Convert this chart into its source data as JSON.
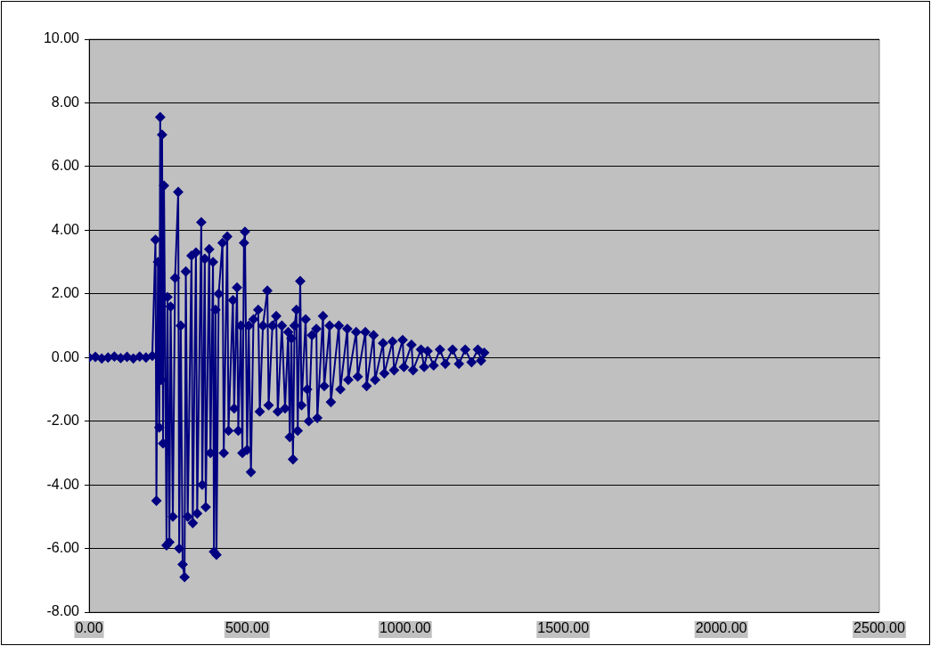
{
  "chart_data": {
    "type": "line",
    "marker": "diamond",
    "line_style": "solid",
    "grid": "y",
    "legend": false,
    "xlim": [
      0,
      2500
    ],
    "xticks": [
      {
        "value": 0,
        "label": "0.00"
      },
      {
        "value": 500,
        "label": "500.00"
      },
      {
        "value": 1000,
        "label": "1000.00"
      },
      {
        "value": 1500,
        "label": "1500.00"
      },
      {
        "value": 2000,
        "label": "2000.00"
      },
      {
        "value": 2500,
        "label": "2500.00"
      }
    ],
    "ylim": [
      -8,
      10
    ],
    "yticks": [
      {
        "value": -8,
        "label": "-8.00"
      },
      {
        "value": -6,
        "label": "-6.00"
      },
      {
        "value": -4,
        "label": "-4.00"
      },
      {
        "value": -2,
        "label": "-2.00"
      },
      {
        "value": 0,
        "label": "0.00"
      },
      {
        "value": 2,
        "label": "2.00"
      },
      {
        "value": 4,
        "label": "4.00"
      },
      {
        "value": 6,
        "label": "6.00"
      },
      {
        "value": 8,
        "label": "8.00"
      },
      {
        "value": 10,
        "label": "10.00"
      }
    ],
    "x": [
      0,
      20,
      40,
      60,
      80,
      100,
      120,
      140,
      160,
      180,
      200,
      210,
      213,
      218,
      222,
      225,
      228,
      231,
      234,
      237,
      245,
      248,
      254,
      258,
      265,
      272,
      282,
      285,
      290,
      296,
      302,
      306,
      312,
      324,
      328,
      338,
      342,
      355,
      358,
      366,
      369,
      380,
      384,
      392,
      395,
      400,
      403,
      410,
      422,
      426,
      437,
      441,
      455,
      459,
      468,
      472,
      480,
      485,
      490,
      493,
      500,
      505,
      512,
      520,
      535,
      540,
      550,
      564,
      568,
      580,
      592,
      597,
      610,
      620,
      630,
      635,
      640,
      645,
      650,
      656,
      660,
      668,
      672,
      685,
      690,
      695,
      705,
      719,
      722,
      740,
      744,
      761,
      765,
      790,
      795,
      817,
      820,
      845,
      850,
      874,
      878,
      900,
      905,
      930,
      934,
      960,
      965,
      992,
      996,
      1020,
      1025,
      1050,
      1060,
      1071,
      1090,
      1110,
      1127,
      1150,
      1170,
      1190,
      1210,
      1230,
      1240,
      1250
    ],
    "series": [
      {
        "color": "#000080",
        "values": [
          0,
          0.02,
          -0.03,
          0,
          0.03,
          -0.02,
          0.02,
          -0.03,
          0.03,
          0,
          0.05,
          3.7,
          -4.5,
          3.0,
          -2.2,
          7.55,
          -0.7,
          7.0,
          -2.7,
          5.4,
          -5.9,
          1.9,
          -5.8,
          1.6,
          -5.0,
          2.5,
          5.2,
          -6.0,
          1.0,
          -6.5,
          -6.9,
          2.7,
          -5.0,
          3.2,
          -5.2,
          3.3,
          -4.9,
          4.25,
          -4.0,
          3.1,
          -4.7,
          3.4,
          -3.0,
          3.0,
          -6.1,
          1.5,
          -6.2,
          2.0,
          3.6,
          -3.0,
          3.8,
          -2.3,
          1.8,
          -1.6,
          2.2,
          -2.3,
          1.0,
          -3.0,
          3.6,
          3.95,
          -2.9,
          1.0,
          -3.6,
          1.2,
          1.5,
          -1.7,
          1.0,
          2.1,
          -1.5,
          1.0,
          1.3,
          -1.7,
          1.0,
          -1.6,
          0.8,
          -2.5,
          0.6,
          -3.2,
          1.0,
          1.5,
          -2.3,
          2.4,
          -1.5,
          1.2,
          -1.0,
          -2.0,
          0.7,
          0.9,
          -1.9,
          1.3,
          -0.9,
          1.0,
          -1.4,
          1.0,
          -1.0,
          0.9,
          -0.7,
          0.8,
          -0.6,
          0.8,
          -0.9,
          0.7,
          -0.7,
          0.45,
          -0.5,
          0.5,
          -0.4,
          0.55,
          -0.3,
          0.4,
          -0.4,
          0.25,
          -0.3,
          0.2,
          -0.25,
          0.25,
          -0.2,
          0.25,
          -0.2,
          0.25,
          -0.15,
          0.25,
          -0.1,
          0.15
        ]
      }
    ]
  }
}
